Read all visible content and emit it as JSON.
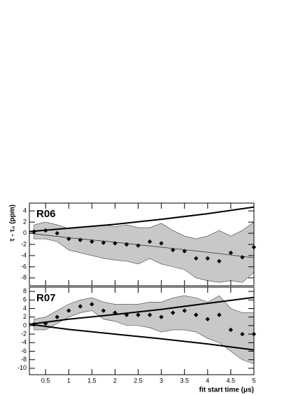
{
  "chart_data": [
    {
      "type": "band-scatter",
      "label": "R06",
      "y_label": "τ - τ₀ (ppm)",
      "xlim": [
        0.15,
        5
      ],
      "xticks": [
        0.5,
        1,
        1.5,
        2,
        2.5,
        3,
        3.5,
        4,
        4.5,
        5
      ],
      "xtick_labels": false,
      "ylim": [
        -9.4,
        5.4
      ],
      "yticks": [
        -8,
        -6,
        -4,
        -2,
        0,
        2,
        4
      ],
      "band": {
        "color": "#c8c8c8",
        "x": [
          0.25,
          0.5,
          0.75,
          1,
          1.25,
          1.5,
          1.75,
          2,
          2.25,
          2.5,
          2.75,
          3,
          3.25,
          3.5,
          3.75,
          4,
          4.25,
          4.5,
          4.75,
          5
        ],
        "upper": [
          1.5,
          2,
          1.5,
          0.8,
          1,
          1.2,
          1.5,
          1.2,
          1.5,
          1,
          1,
          1.8,
          0.5,
          -0.5,
          -1,
          -0.5,
          0.5,
          -0.5,
          0.5,
          2
        ],
        "lower": [
          -1,
          -1,
          -1.5,
          -3,
          -3.5,
          -4,
          -4.5,
          -4.8,
          -5,
          -5.5,
          -4.5,
          -5.5,
          -6,
          -6.5,
          -8,
          -8.5,
          -8.8,
          -8.5,
          -8.8,
          -7
        ]
      },
      "points": {
        "color": "#000000",
        "x": [
          0.25,
          0.5,
          0.75,
          1,
          1.25,
          1.5,
          1.75,
          2,
          2.25,
          2.5,
          2.75,
          3,
          3.25,
          3.5,
          3.75,
          4,
          4.25,
          4.5,
          4.75,
          5
        ],
        "values": [
          0.3,
          0.5,
          0,
          -1,
          -1.2,
          -1.5,
          -1.7,
          -1.8,
          -2,
          -2.2,
          -1.5,
          -1.8,
          -3,
          -3.2,
          -4.5,
          -4.5,
          -5,
          -3.5,
          -4.3,
          -2.5
        ]
      },
      "curves": [
        {
          "color": "#000000",
          "width": 2,
          "x": [
            0.15,
            1,
            2,
            3,
            4,
            5
          ],
          "values": [
            0.3,
            0.9,
            1.6,
            2.5,
            3.5,
            4.7
          ]
        },
        {
          "color": "#333333",
          "width": 0.8,
          "x": [
            0.15,
            1,
            2,
            3,
            4,
            5
          ],
          "values": [
            0,
            -0.8,
            -1.6,
            -2.5,
            -3.4,
            -4.4
          ]
        }
      ]
    },
    {
      "type": "band-scatter",
      "label": "R07",
      "x_label": "fit start time (μs)",
      "xlim": [
        0.15,
        5
      ],
      "xticks": [
        0.5,
        1,
        1.5,
        2,
        2.5,
        3,
        3.5,
        4,
        4.5,
        5
      ],
      "xtick_labels": true,
      "ylim": [
        -11.5,
        9
      ],
      "yticks": [
        -10,
        -8,
        -6,
        -4,
        -2,
        0,
        2,
        4,
        6,
        8
      ],
      "band": {
        "color": "#c8c8c8",
        "x": [
          0.25,
          0.5,
          0.75,
          1,
          1.25,
          1.5,
          1.75,
          2,
          2.25,
          2.5,
          2.75,
          3,
          3.25,
          3.5,
          3.75,
          4,
          4.25,
          4.5,
          4.75,
          5
        ],
        "upper": [
          1.5,
          2,
          3.5,
          5,
          6,
          6.5,
          5.5,
          5,
          5,
          5,
          5.5,
          5.5,
          6.5,
          7,
          6.5,
          5.5,
          7,
          4,
          3,
          3
        ],
        "lower": [
          -1,
          -1,
          0.5,
          2,
          3,
          3.5,
          1.5,
          1,
          0,
          0,
          -0.5,
          -1.5,
          -1,
          -1,
          -1.5,
          -3,
          -4,
          -6,
          -8,
          -9
        ]
      },
      "points": {
        "color": "#000000",
        "x": [
          0.25,
          0.5,
          0.75,
          1,
          1.25,
          1.5,
          1.75,
          2,
          2.25,
          2.5,
          2.75,
          3,
          3.25,
          3.5,
          3.75,
          4,
          4.25,
          4.5,
          4.75,
          5
        ],
        "values": [
          0.3,
          0.5,
          2,
          3.5,
          4.5,
          5,
          3.5,
          3,
          2.5,
          2.5,
          2.5,
          2,
          3,
          3.5,
          2.5,
          1.5,
          2.5,
          -1,
          -2,
          -2
        ]
      },
      "curves": [
        {
          "color": "#000000",
          "width": 2,
          "x": [
            0.15,
            1,
            2,
            3,
            4,
            5
          ],
          "values": [
            0.3,
            1.5,
            2.6,
            3.8,
            5.2,
            6.6
          ]
        },
        {
          "color": "#000000",
          "width": 2,
          "x": [
            0.15,
            1,
            2,
            3,
            4,
            5
          ],
          "values": [
            0.3,
            -0.9,
            -2,
            -3.1,
            -4.3,
            -5.7
          ]
        }
      ]
    }
  ]
}
